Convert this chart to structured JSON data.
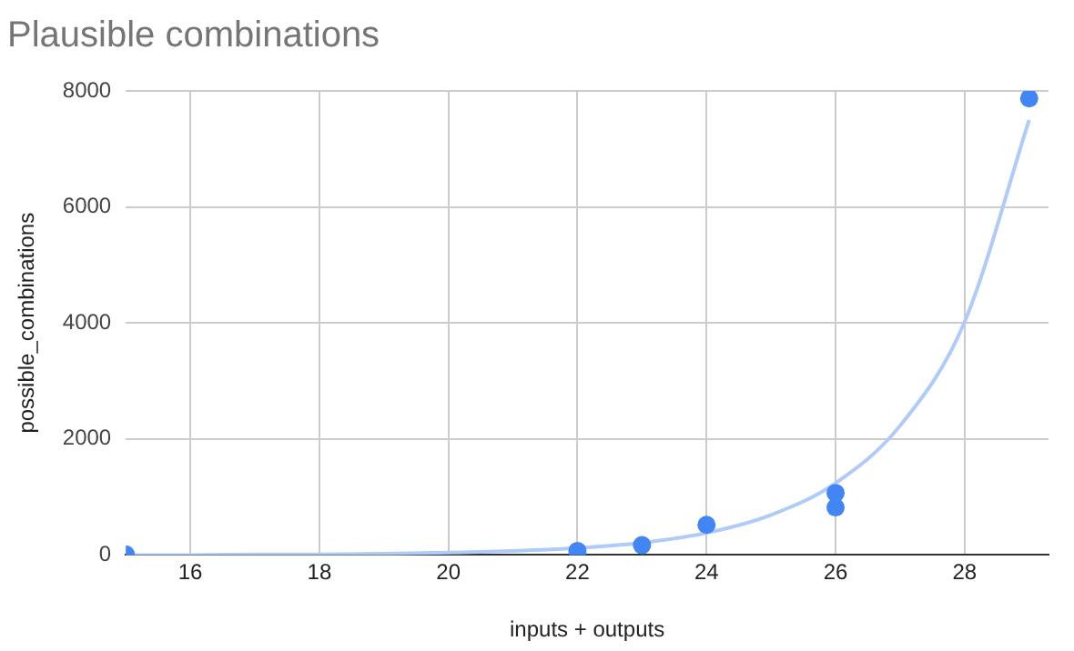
{
  "chart_data": {
    "type": "scatter",
    "title": "Plausible combinations",
    "xlabel": "inputs + outputs",
    "ylabel": "possible_combinations",
    "xlim": [
      15,
      29.3
    ],
    "xticks": [
      16,
      18,
      20,
      22,
      24,
      26,
      28
    ],
    "ylim": [
      0,
      8000
    ],
    "yticks": [
      0,
      2000,
      4000,
      6000,
      8000
    ],
    "grid": true,
    "legend": false,
    "marker": "circle",
    "series": [
      {
        "type": "scatter",
        "color": "#4285f4",
        "x": [
          15,
          22,
          23,
          24,
          26,
          26,
          29
        ],
        "values": [
          10,
          70,
          170,
          520,
          820,
          1070,
          7870
        ]
      },
      {
        "type": "line",
        "color": "#aecbfa",
        "line_style": "solid",
        "marker": "none",
        "x": [
          15,
          16,
          17,
          18,
          19,
          20,
          21,
          22,
          23,
          24,
          25,
          26,
          27,
          28,
          29
        ],
        "values": [
          0,
          0,
          10,
          10,
          20,
          40,
          70,
          120,
          210,
          380,
          690,
          1240,
          2230,
          4020,
          7500
        ]
      }
    ]
  }
}
